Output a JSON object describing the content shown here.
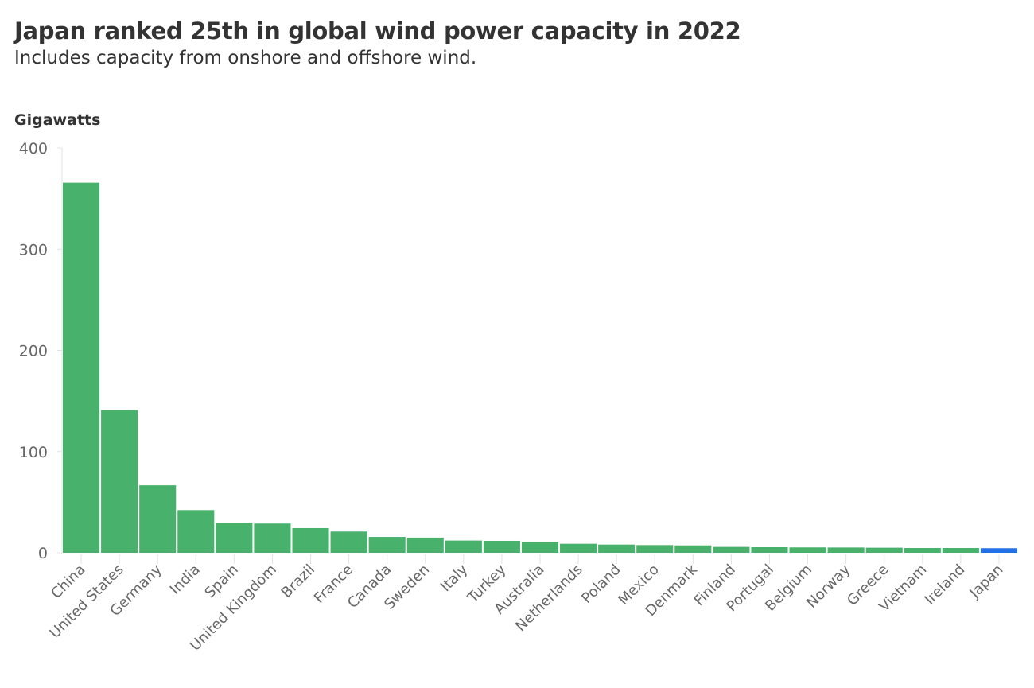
{
  "chart_data": {
    "type": "bar",
    "title": "Japan ranked 25th in global wind power capacity in 2022",
    "subtitle": "Includes capacity from onshore and offshore wind.",
    "ylabel": "Gigawatts",
    "xlabel": "",
    "ylim": [
      0,
      400
    ],
    "yticks": [
      "0",
      "100",
      "200",
      "300",
      "400"
    ],
    "grid": false,
    "colors": {
      "default": "#48b26d",
      "highlight": "#1f6fe6"
    },
    "highlight": "Japan",
    "categories": [
      "China",
      "United States",
      "Germany",
      "India",
      "Spain",
      "United Kingdom",
      "Brazil",
      "France",
      "Canada",
      "Sweden",
      "Italy",
      "Turkey",
      "Australia",
      "Netherlands",
      "Poland",
      "Mexico",
      "Denmark",
      "Finland",
      "Portugal",
      "Belgium",
      "Norway",
      "Greece",
      "Vietnam",
      "Ireland",
      "Japan"
    ],
    "values": [
      365.7,
      141,
      66.7,
      42.2,
      29.7,
      28.9,
      24.4,
      21.0,
      15.7,
      15.0,
      12.1,
      11.8,
      10.8,
      8.9,
      8.1,
      7.6,
      7.3,
      5.8,
      5.5,
      5.3,
      5.2,
      5.0,
      4.7,
      4.7,
      4.5
    ]
  }
}
